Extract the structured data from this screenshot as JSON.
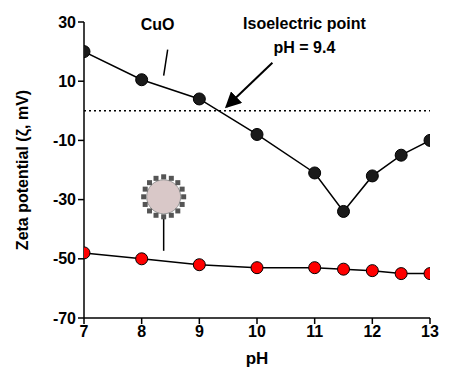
{
  "chart_data": {
    "type": "line",
    "x_label": "pH",
    "y_label": "Zeta potential (ζ, mV)",
    "x": [
      7,
      8,
      9,
      10,
      11,
      11.5,
      12,
      12.5,
      13
    ],
    "series": [
      {
        "name": "CuO",
        "color": "#1a1a1a",
        "marker": "circle",
        "values": [
          20,
          10.5,
          4,
          -8,
          -21,
          -34,
          -22,
          -15,
          -10
        ]
      },
      {
        "color": "#ff0000",
        "marker": "circle",
        "values": [
          -48,
          -50,
          -52,
          -53,
          -53,
          -53.5,
          -54,
          -55,
          -55
        ]
      }
    ],
    "xlim": [
      7,
      13
    ],
    "xticks": [
      7,
      8,
      9,
      10,
      11,
      12,
      13
    ],
    "ylim": [
      -70,
      30
    ],
    "yticks": [
      -70,
      -50,
      -30,
      -10,
      10,
      30
    ],
    "grid": false,
    "reference_y": 0,
    "annotation": {
      "text": [
        "Isoelectric point",
        "pH = 9.4"
      ],
      "x": 9.4,
      "y": 0
    }
  }
}
